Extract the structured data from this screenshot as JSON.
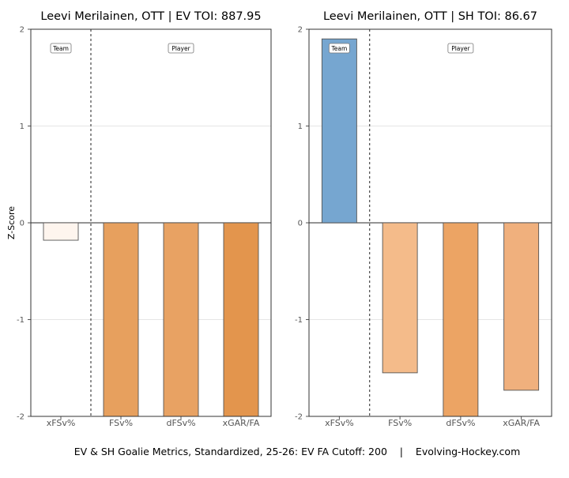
{
  "chart_data": [
    {
      "type": "bar",
      "title": "Leevi Merilainen, OTT | EV TOI: 887.95",
      "ylabel": "Z-Score",
      "xlabel": "",
      "ylim": [
        -2,
        2
      ],
      "yticks": [
        "2",
        "1",
        "0",
        "-1",
        "-2"
      ],
      "grid": true,
      "categories": [
        "xFSv%",
        "FSv%",
        "dFSv%",
        "xGAR/FA"
      ],
      "values": [
        -0.18,
        -2.0,
        -2.0,
        -2.0
      ],
      "colors": [
        "#fef5ee",
        "#e7a05e",
        "#e8a263",
        "#e3954d"
      ],
      "annotations": [
        "Team",
        "Player"
      ]
    },
    {
      "type": "bar",
      "title": "Leevi Merilainen, OTT | SH TOI: 86.67",
      "ylabel": "",
      "xlabel": "",
      "ylim": [
        -2,
        2
      ],
      "yticks": [
        "2",
        "1",
        "0",
        "-1",
        "-2"
      ],
      "grid": true,
      "categories": [
        "xFSv%",
        "FSv%",
        "dFSv%",
        "xGAR/FA"
      ],
      "values": [
        1.9,
        -1.55,
        -2.0,
        -1.73
      ],
      "colors": [
        "#76a6d0",
        "#f4bb8a",
        "#eca464",
        "#f0b07d"
      ],
      "annotations": [
        "Team",
        "Player"
      ]
    }
  ],
  "footer": "EV & SH Goalie Metrics, Standardized, 25-26: EV FA Cutoff: 200    |    Evolving-Hockey.com"
}
